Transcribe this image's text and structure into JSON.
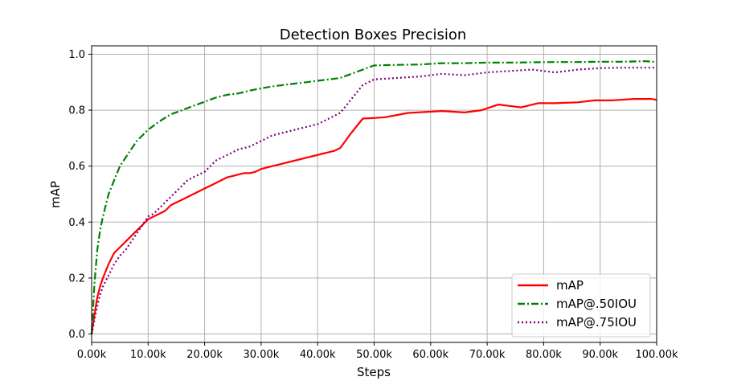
{
  "chart_data": {
    "type": "line",
    "title": "Detection Boxes Precision",
    "xlabel": "Steps",
    "ylabel": "mAP",
    "xlim": [
      0,
      100000
    ],
    "ylim": [
      -0.03,
      1.03
    ],
    "x_ticks": [
      0,
      10000,
      20000,
      30000,
      40000,
      50000,
      60000,
      70000,
      80000,
      90000,
      100000
    ],
    "x_tick_labels": [
      "0.00k",
      "10.00k",
      "20.00k",
      "30.00k",
      "40.00k",
      "50.00k",
      "60.00k",
      "70.00k",
      "80.00k",
      "90.00k",
      "100.00k"
    ],
    "y_ticks": [
      0.0,
      0.2,
      0.4,
      0.6,
      0.8,
      1.0
    ],
    "y_tick_labels": [
      "0.0",
      "0.2",
      "0.4",
      "0.6",
      "0.8",
      "1.0"
    ],
    "grid": true,
    "legend_position": "bottom-right",
    "series": [
      {
        "name": "mAP",
        "color": "#ff0000",
        "style": "solid",
        "x": [
          0,
          500,
          1000,
          1500,
          2000,
          3000,
          4000,
          5000,
          6000,
          7000,
          8000,
          9000,
          10000,
          11000,
          12000,
          13000,
          14000,
          15000,
          16000,
          17000,
          18000,
          19000,
          20000,
          21000,
          22000,
          23000,
          24000,
          25000,
          26000,
          27000,
          28000,
          29000,
          30000,
          31000,
          32000,
          33000,
          34000,
          35000,
          36000,
          37000,
          38000,
          39000,
          40000,
          41000,
          42000,
          43000,
          44000,
          46000,
          48000,
          50000,
          52000,
          56000,
          62000,
          66000,
          69000,
          72000,
          76000,
          79000,
          82000,
          86000,
          89000,
          92000,
          96000,
          99000,
          100000
        ],
        "y": [
          0.0,
          0.07,
          0.13,
          0.17,
          0.2,
          0.25,
          0.29,
          0.31,
          0.33,
          0.35,
          0.37,
          0.39,
          0.41,
          0.42,
          0.43,
          0.44,
          0.46,
          0.47,
          0.48,
          0.49,
          0.5,
          0.51,
          0.52,
          0.53,
          0.54,
          0.55,
          0.56,
          0.565,
          0.57,
          0.575,
          0.575,
          0.58,
          0.59,
          0.595,
          0.6,
          0.605,
          0.61,
          0.615,
          0.62,
          0.625,
          0.63,
          0.635,
          0.64,
          0.645,
          0.65,
          0.655,
          0.665,
          0.72,
          0.77,
          0.772,
          0.775,
          0.79,
          0.797,
          0.792,
          0.8,
          0.82,
          0.81,
          0.825,
          0.825,
          0.828,
          0.835,
          0.835,
          0.84,
          0.84,
          0.837
        ]
      },
      {
        "name": "mAP@.50IOU",
        "color": "#008000",
        "style": "dashdot",
        "x": [
          0,
          500,
          1000,
          1500,
          2000,
          3000,
          4000,
          5000,
          6000,
          7000,
          8000,
          9000,
          10000,
          12000,
          14000,
          16000,
          18000,
          20000,
          22000,
          24000,
          26000,
          28000,
          30000,
          32000,
          34000,
          36000,
          38000,
          40000,
          42000,
          44000,
          46000,
          48000,
          50000,
          54000,
          58000,
          62000,
          66000,
          70000,
          74000,
          78000,
          82000,
          86000,
          90000,
          94000,
          98000,
          100000
        ],
        "y": [
          0.0,
          0.18,
          0.3,
          0.37,
          0.42,
          0.5,
          0.55,
          0.6,
          0.63,
          0.66,
          0.69,
          0.71,
          0.73,
          0.76,
          0.785,
          0.8,
          0.815,
          0.83,
          0.845,
          0.855,
          0.86,
          0.87,
          0.878,
          0.885,
          0.89,
          0.895,
          0.9,
          0.905,
          0.91,
          0.915,
          0.93,
          0.945,
          0.96,
          0.962,
          0.963,
          0.968,
          0.968,
          0.97,
          0.97,
          0.971,
          0.972,
          0.972,
          0.973,
          0.973,
          0.975,
          0.972
        ]
      },
      {
        "name": "mAP@.75IOU",
        "color": "#800080",
        "style": "dotted",
        "x": [
          0,
          500,
          1000,
          1500,
          2000,
          3000,
          4000,
          5000,
          6000,
          7000,
          8000,
          9000,
          10000,
          11000,
          12000,
          13000,
          14000,
          15000,
          16000,
          17000,
          18000,
          19000,
          20000,
          21000,
          22000,
          23000,
          24000,
          25000,
          26000,
          27000,
          28000,
          29000,
          30000,
          31000,
          32000,
          33000,
          34000,
          35000,
          36000,
          37000,
          38000,
          39000,
          40000,
          41000,
          42000,
          43000,
          44000,
          46000,
          48000,
          50000,
          54000,
          58000,
          62000,
          66000,
          70000,
          74000,
          78000,
          82000,
          86000,
          90000,
          94000,
          100000
        ],
        "y": [
          0.0,
          0.05,
          0.1,
          0.14,
          0.17,
          0.21,
          0.25,
          0.28,
          0.3,
          0.33,
          0.36,
          0.39,
          0.42,
          0.43,
          0.45,
          0.47,
          0.49,
          0.51,
          0.53,
          0.55,
          0.56,
          0.57,
          0.58,
          0.6,
          0.62,
          0.63,
          0.64,
          0.65,
          0.66,
          0.665,
          0.67,
          0.68,
          0.69,
          0.7,
          0.71,
          0.715,
          0.72,
          0.725,
          0.73,
          0.735,
          0.74,
          0.745,
          0.75,
          0.76,
          0.77,
          0.78,
          0.79,
          0.84,
          0.89,
          0.91,
          0.915,
          0.92,
          0.93,
          0.925,
          0.935,
          0.94,
          0.945,
          0.935,
          0.945,
          0.95,
          0.952,
          0.952
        ]
      }
    ]
  }
}
